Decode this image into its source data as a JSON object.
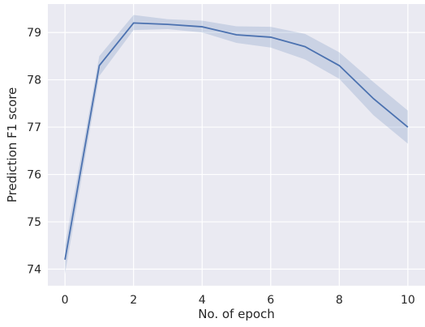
{
  "chart_data": {
    "type": "line",
    "title": "",
    "xlabel": "No. of epoch",
    "ylabel": "Prediction F1 score",
    "xlim": [
      -0.5,
      10.5
    ],
    "ylim": [
      73.65,
      79.6
    ],
    "xticks": [
      0,
      2,
      4,
      6,
      8,
      10
    ],
    "yticks": [
      74,
      75,
      76,
      77,
      78,
      79
    ],
    "grid": true,
    "legend": "none",
    "series": [
      {
        "x": [
          0,
          1,
          2,
          3,
          4,
          5,
          6,
          7,
          8,
          9,
          10
        ],
        "values": [
          74.2,
          78.3,
          79.2,
          79.17,
          79.12,
          78.95,
          78.9,
          78.7,
          78.3,
          77.6,
          77.0
        ],
        "band_upper": [
          74.5,
          78.5,
          79.37,
          79.28,
          79.25,
          79.13,
          79.12,
          78.97,
          78.58,
          77.95,
          77.35
        ],
        "band_lower": [
          73.9,
          78.08,
          79.05,
          79.07,
          79.0,
          78.78,
          78.68,
          78.43,
          78.02,
          77.25,
          76.65
        ],
        "color": "#4c72b0"
      }
    ],
    "colors": {
      "plot_background": "#eaeaf2",
      "grid": "#ffffff",
      "line": "#4c72b0",
      "band": "#4c72b0"
    }
  }
}
